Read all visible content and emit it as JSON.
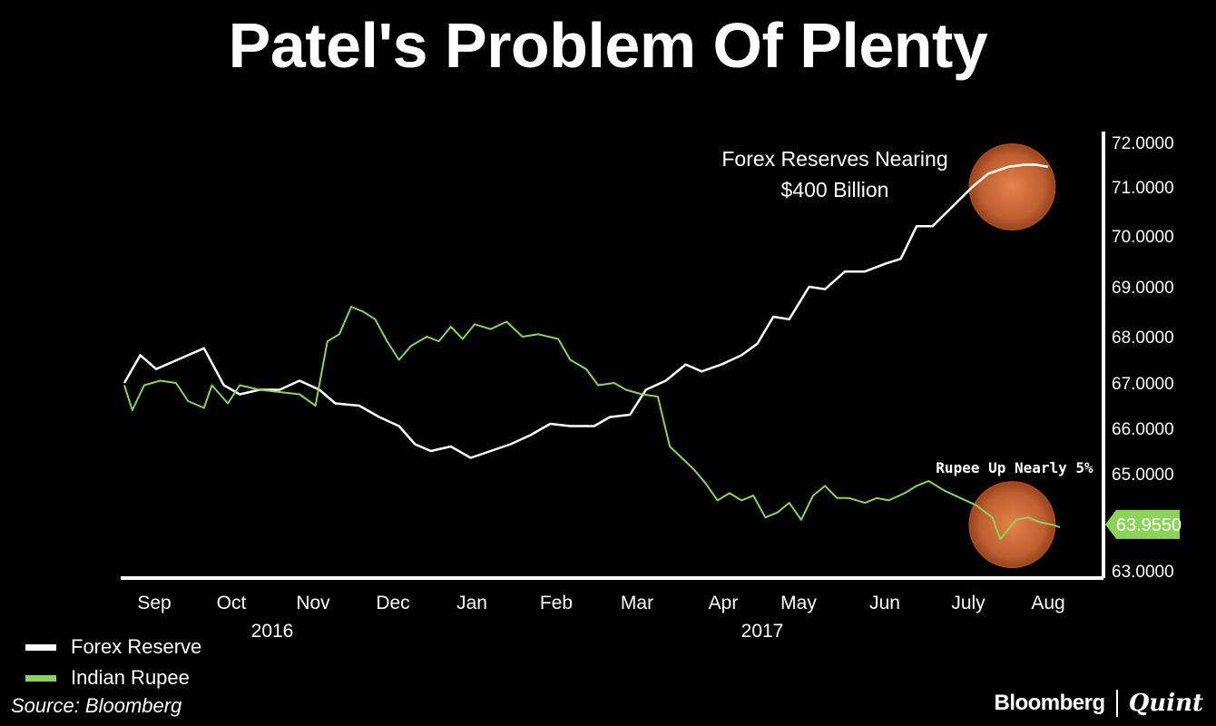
{
  "chart_data": {
    "type": "line",
    "title": "Patel's Problem Of Plenty",
    "x_labels": [
      "Sep",
      "Oct",
      "Nov",
      "Dec",
      "Jan",
      "Feb",
      "Mar",
      "Apr",
      "May",
      "Jun",
      "July",
      "Aug"
    ],
    "year_labels": [
      "2016",
      "2017"
    ],
    "y_ticks": [
      "72.0000",
      "71.0000",
      "70.0000",
      "69.0000",
      "68.0000",
      "67.0000",
      "66.0000",
      "65.0000",
      "63.0000"
    ],
    "y_tick_values": [
      72,
      71,
      70,
      69,
      68,
      67,
      66,
      65,
      63
    ],
    "ylim": [
      63,
      72
    ],
    "xlim": [
      0,
      12
    ],
    "series": [
      {
        "name": "Forex Reserve",
        "color": "#ffffff",
        "points": [
          [
            0,
            67.0
          ],
          [
            0.2,
            67.6
          ],
          [
            0.4,
            67.3
          ],
          [
            0.6,
            67.45
          ],
          [
            0.8,
            67.6
          ],
          [
            1.0,
            67.75
          ],
          [
            1.25,
            66.95
          ],
          [
            1.45,
            66.75
          ],
          [
            1.7,
            66.85
          ],
          [
            1.95,
            66.85
          ],
          [
            2.2,
            67.05
          ],
          [
            2.45,
            66.85
          ],
          [
            2.65,
            66.55
          ],
          [
            2.95,
            66.5
          ],
          [
            3.2,
            66.25
          ],
          [
            3.45,
            66.05
          ],
          [
            3.65,
            65.65
          ],
          [
            3.85,
            65.5
          ],
          [
            4.1,
            65.6
          ],
          [
            4.35,
            65.35
          ],
          [
            4.6,
            65.5
          ],
          [
            4.85,
            65.65
          ],
          [
            5.1,
            65.85
          ],
          [
            5.35,
            66.1
          ],
          [
            5.6,
            66.05
          ],
          [
            5.9,
            66.05
          ],
          [
            6.1,
            66.25
          ],
          [
            6.35,
            66.3
          ],
          [
            6.55,
            66.85
          ],
          [
            6.8,
            67.05
          ],
          [
            7.05,
            67.4
          ],
          [
            7.25,
            67.25
          ],
          [
            7.5,
            67.4
          ],
          [
            7.75,
            67.6
          ],
          [
            7.95,
            67.85
          ],
          [
            8.15,
            68.4
          ],
          [
            8.35,
            68.35
          ],
          [
            8.6,
            69.0
          ],
          [
            8.8,
            68.95
          ],
          [
            9.05,
            69.3
          ],
          [
            9.3,
            69.3
          ],
          [
            9.55,
            69.45
          ],
          [
            9.75,
            69.55
          ],
          [
            9.95,
            70.2
          ],
          [
            10.15,
            70.2
          ],
          [
            10.4,
            70.6
          ],
          [
            10.65,
            71.0
          ],
          [
            10.85,
            71.3
          ],
          [
            11.1,
            71.45
          ],
          [
            11.3,
            71.5
          ],
          [
            11.45,
            71.5
          ],
          [
            11.6,
            71.45
          ]
        ]
      },
      {
        "name": "Indian Rupee",
        "color": "#8bd45a",
        "points": [
          [
            0,
            66.95
          ],
          [
            0.1,
            66.4
          ],
          [
            0.25,
            66.95
          ],
          [
            0.45,
            67.05
          ],
          [
            0.65,
            67.0
          ],
          [
            0.8,
            66.6
          ],
          [
            1.0,
            66.45
          ],
          [
            1.1,
            66.95
          ],
          [
            1.3,
            66.55
          ],
          [
            1.45,
            66.95
          ],
          [
            1.7,
            66.85
          ],
          [
            1.95,
            66.8
          ],
          [
            2.2,
            66.75
          ],
          [
            2.4,
            66.5
          ],
          [
            2.55,
            67.9
          ],
          [
            2.7,
            68.05
          ],
          [
            2.85,
            68.6
          ],
          [
            3.0,
            68.5
          ],
          [
            3.15,
            68.35
          ],
          [
            3.3,
            67.9
          ],
          [
            3.45,
            67.5
          ],
          [
            3.6,
            67.8
          ],
          [
            3.8,
            68.0
          ],
          [
            3.95,
            67.9
          ],
          [
            4.1,
            68.2
          ],
          [
            4.25,
            67.95
          ],
          [
            4.4,
            68.25
          ],
          [
            4.6,
            68.15
          ],
          [
            4.8,
            68.3
          ],
          [
            5.0,
            68.0
          ],
          [
            5.2,
            68.05
          ],
          [
            5.45,
            67.95
          ],
          [
            5.6,
            67.5
          ],
          [
            5.8,
            67.3
          ],
          [
            5.95,
            66.95
          ],
          [
            6.15,
            67.0
          ],
          [
            6.3,
            66.85
          ],
          [
            6.5,
            66.75
          ],
          [
            6.7,
            66.7
          ],
          [
            6.85,
            65.6
          ],
          [
            7.0,
            65.35
          ],
          [
            7.15,
            65.1
          ],
          [
            7.3,
            64.8
          ],
          [
            7.45,
            64.45
          ],
          [
            7.6,
            64.6
          ],
          [
            7.75,
            64.45
          ],
          [
            7.9,
            64.55
          ],
          [
            8.05,
            64.1
          ],
          [
            8.2,
            64.2
          ],
          [
            8.35,
            64.4
          ],
          [
            8.5,
            64.05
          ],
          [
            8.65,
            64.55
          ],
          [
            8.8,
            64.75
          ],
          [
            8.95,
            64.5
          ],
          [
            9.1,
            64.5
          ],
          [
            9.3,
            64.4
          ],
          [
            9.45,
            64.5
          ],
          [
            9.6,
            64.45
          ],
          [
            9.8,
            64.6
          ],
          [
            9.95,
            64.75
          ],
          [
            10.1,
            64.85
          ],
          [
            10.3,
            64.65
          ],
          [
            10.5,
            64.5
          ],
          [
            10.7,
            64.35
          ],
          [
            10.9,
            64.1
          ],
          [
            11.0,
            63.65
          ],
          [
            11.1,
            63.85
          ],
          [
            11.2,
            64.05
          ],
          [
            11.35,
            64.1
          ],
          [
            11.5,
            64.0
          ],
          [
            11.65,
            63.95
          ],
          [
            11.75,
            63.9
          ]
        ]
      }
    ],
    "current_value_badge": "63.9550",
    "annotations": [
      "Forex Reserves Nearing",
      "$400 Billion",
      "Rupee Up Nearly 5%"
    ],
    "highlight_points": [
      [
        11.15,
        71.0
      ],
      [
        11.15,
        63.95
      ]
    ],
    "legend": [
      "Forex Reserve",
      "Indian Rupee"
    ],
    "highlight_color": "#f08a50"
  },
  "source": "Source: Bloomberg",
  "brand": {
    "name": "Bloomberg",
    "partner": "Quint"
  }
}
